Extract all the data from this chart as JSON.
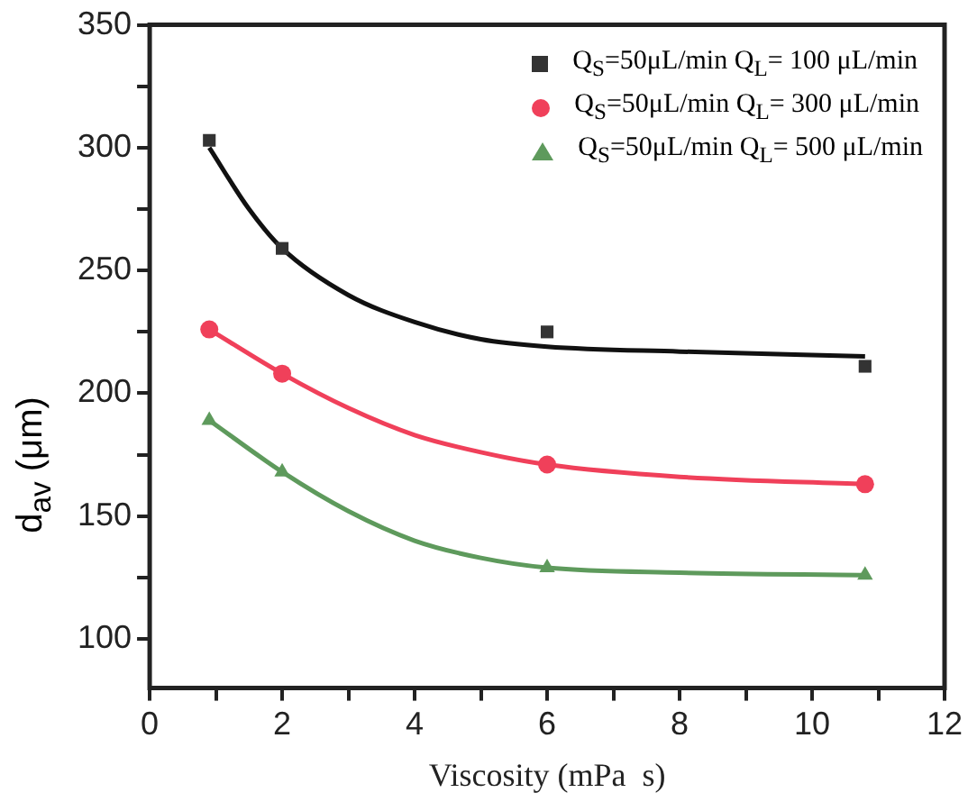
{
  "chart_data": {
    "type": "scatter",
    "xlabel": "Viscosity (mPa  s)",
    "ylabel": "d$_{av}$ (μm)",
    "xlim": [
      0,
      12
    ],
    "xticks": [
      0,
      {
        "value": 1,
        "label": null
      },
      2,
      {
        "value": 3,
        "label": null
      },
      4,
      {
        "value": 5,
        "label": null
      },
      6,
      {
        "value": 7,
        "label": null
      },
      8,
      {
        "value": 9,
        "label": null
      },
      10,
      {
        "value": 11,
        "label": null
      },
      12
    ],
    "ylim": [
      80,
      350
    ],
    "yticks": [
      100,
      {
        "value": 125,
        "label": null
      },
      150,
      {
        "value": 175,
        "label": null
      },
      200,
      {
        "value": 225,
        "label": null
      },
      250,
      {
        "value": 275,
        "label": null
      },
      300,
      {
        "value": 325,
        "label": null
      },
      350
    ],
    "grid": false,
    "legend": "top right",
    "series": [
      {
        "name": "Q$_{S}$=50μL/min Q$_{L}$= 100 μL/min",
        "color": "#333333",
        "marker": "square",
        "x": [
          0.9,
          2,
          6,
          10.8
        ],
        "values": [
          303,
          259,
          225,
          211
        ]
      },
      {
        "name": "Q$_{S}$=50μL/min Q$_{L}$= 300 μL/min",
        "color": "#f0405a",
        "marker": "circle",
        "x": [
          0.9,
          2,
          6,
          10.8
        ],
        "values": [
          226,
          208,
          171,
          163
        ]
      },
      {
        "name": "Q$_{S}$=50μL/min Q$_{L}$= 500 μL/min",
        "color": "#5e9a5c",
        "marker": "triangle",
        "x": [
          0.9,
          2,
          6,
          10.8
        ],
        "values": [
          189,
          168,
          129,
          126
        ]
      },
      {
        "type": "line",
        "color": "#111111",
        "marker": "none",
        "x": [
          0.9,
          1.5,
          2,
          3,
          4,
          5,
          6,
          8,
          10.8
        ],
        "values": [
          300,
          275,
          259,
          240,
          229,
          222,
          219,
          217,
          215
        ]
      },
      {
        "type": "line",
        "color": "#f0405a",
        "marker": "none",
        "x": [
          0.9,
          2,
          3,
          4,
          5,
          6,
          8,
          10.8
        ],
        "values": [
          226,
          208,
          194,
          183,
          176,
          171,
          166,
          163
        ]
      },
      {
        "type": "line",
        "color": "#5e9a5c",
        "marker": "none",
        "x": [
          0.9,
          2,
          3,
          4,
          5,
          6,
          8,
          10.8
        ],
        "values": [
          189,
          168,
          152,
          140,
          133,
          129,
          127,
          126
        ]
      }
    ]
  }
}
